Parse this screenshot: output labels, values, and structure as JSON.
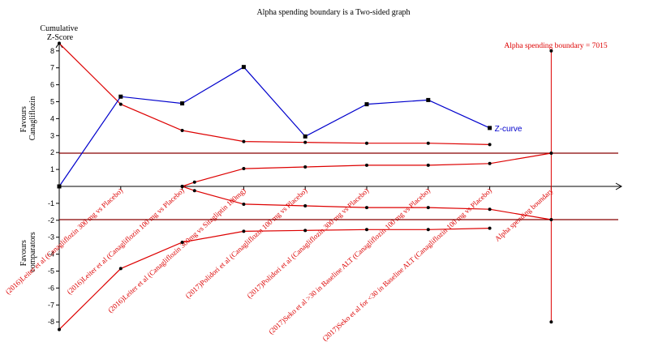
{
  "chart_data": {
    "type": "line",
    "title": "Alpha spending boundary is a Two-sided graph",
    "ylabel": "Cumulative Z-Score",
    "ylabel_lines": [
      "Cumulative",
      "Z-Score"
    ],
    "ylim": [
      -8,
      8
    ],
    "yticks": [
      8,
      7,
      6,
      5,
      4,
      3,
      2,
      1,
      -1,
      -2,
      -3,
      -4,
      -5,
      -6,
      -7,
      -8
    ],
    "favours_top": [
      "Favours",
      "Canagliflozin"
    ],
    "favours_bottom": [
      "Favours",
      "comparators"
    ],
    "categories": [
      "",
      "(2016)Leiter et al (Canagliflozin 300 mg vs Placebo)",
      "(2016)Leiter et al (Canagliflozin 100 mg vs Placebo)",
      "(2016)Leiter et al (Canagliflozin 300mg vs Sitagliptin 100mg)",
      "(2017)Polidori et al  (Canagliflozin 100 mg vs Placebo)",
      "(2017)Polidori et al  (Canagliflozin 300 mg vs Placebo)",
      "(2017)Seko et al >30 in Baseline ALT (Canagliflozin 100 mg vs Placebo)",
      "(2017)Seko et al for <30 in Baseline ALT (Canagliflozin 100 mg vs Placebo)",
      "Alpha spending boundary"
    ],
    "z_curve": {
      "name": "Z-curve",
      "color": "#0000cc",
      "values": [
        0,
        5.3,
        4.9,
        7.05,
        2.95,
        4.85,
        5.1,
        3.45
      ]
    },
    "monitoring_upper": {
      "color": "#dd0000",
      "values": [
        8.45,
        4.85,
        3.3,
        2.65,
        2.6,
        2.55,
        2.55,
        2.47
      ]
    },
    "monitoring_lower": {
      "color": "#dd0000",
      "values": [
        -8.45,
        -4.85,
        -3.3,
        -2.65,
        -2.6,
        -2.55,
        -2.55,
        -2.47
      ]
    },
    "futility_upper": {
      "color": "#dd0000",
      "x": [
        2,
        2.2,
        3,
        4,
        5,
        6,
        7,
        8
      ],
      "values": [
        0,
        0.25,
        1.05,
        1.15,
        1.25,
        1.25,
        1.35,
        1.96
      ]
    },
    "futility_lower": {
      "color": "#dd0000",
      "x": [
        2,
        2.2,
        3,
        4,
        5,
        6,
        7,
        8
      ],
      "values": [
        0,
        -0.25,
        -1.05,
        -1.15,
        -1.25,
        -1.25,
        -1.35,
        -1.96
      ]
    },
    "conventional_boundary": {
      "values": [
        1.96,
        -1.96
      ],
      "color": "#880000"
    },
    "alpha_spending_boundary": {
      "label": "Alpha spending boundary = 7015",
      "x": 8,
      "ymin": -8,
      "ymax": 8,
      "color": "#dd0000"
    },
    "grid": false
  }
}
